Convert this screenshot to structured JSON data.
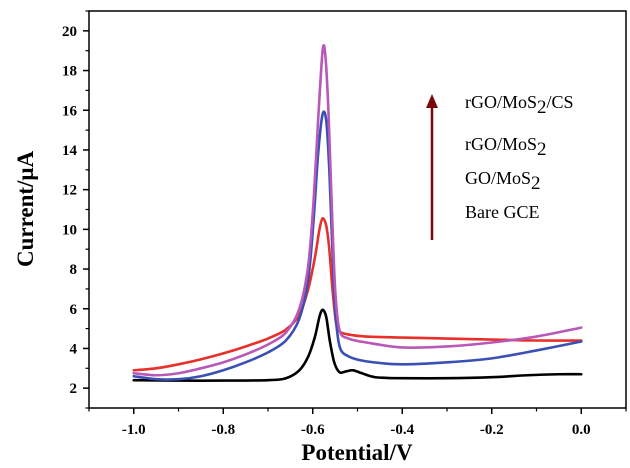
{
  "chart_data": {
    "type": "line",
    "xlabel": "Potential/V",
    "ylabel": "Current/μA",
    "xlim": [
      -1.1,
      0.1
    ],
    "ylim": [
      1,
      21
    ],
    "x_ticks": [
      -1.0,
      -0.8,
      -0.6,
      -0.4,
      -0.2,
      0.0
    ],
    "x_tick_labels": [
      "-1.0",
      "-0.8",
      "-0.6",
      "-0.4",
      "-0.2",
      "0.0"
    ],
    "y_ticks": [
      2,
      4,
      6,
      8,
      10,
      12,
      14,
      16,
      18,
      20
    ],
    "y_tick_labels": [
      "2",
      "4",
      "6",
      "8",
      "10",
      "12",
      "14",
      "16",
      "18",
      "20"
    ],
    "grid": false,
    "legend_placement": "top-right",
    "legend_entries": [
      {
        "label": "rGO/MoS",
        "sub": "2",
        "suffix": "/CS"
      },
      {
        "label": "rGO/MoS",
        "sub": "2",
        "suffix": ""
      },
      {
        "label": "GO/MoS",
        "sub": "2",
        "suffix": ""
      },
      {
        "label": "Bare GCE",
        "sub": "",
        "suffix": ""
      }
    ],
    "arrow": {
      "color": "#7a0a0a",
      "direction": "up"
    },
    "series": [
      {
        "color": "#000000",
        "points": [
          [
            -1.0,
            2.4
          ],
          [
            -0.9,
            2.38
          ],
          [
            -0.8,
            2.38
          ],
          [
            -0.7,
            2.4
          ],
          [
            -0.66,
            2.5
          ],
          [
            -0.63,
            2.9
          ],
          [
            -0.61,
            3.6
          ],
          [
            -0.595,
            4.6
          ],
          [
            -0.585,
            5.6
          ],
          [
            -0.578,
            5.95
          ],
          [
            -0.57,
            5.6
          ],
          [
            -0.562,
            4.4
          ],
          [
            -0.552,
            3.3
          ],
          [
            -0.54,
            2.8
          ],
          [
            -0.525,
            2.85
          ],
          [
            -0.51,
            2.9
          ],
          [
            -0.49,
            2.75
          ],
          [
            -0.46,
            2.55
          ],
          [
            -0.4,
            2.5
          ],
          [
            -0.3,
            2.5
          ],
          [
            -0.2,
            2.55
          ],
          [
            -0.12,
            2.65
          ],
          [
            -0.05,
            2.7
          ],
          [
            0.0,
            2.7
          ]
        ]
      },
      {
        "color": "#e8302a",
        "points": [
          [
            -1.0,
            2.9
          ],
          [
            -0.95,
            3.0
          ],
          [
            -0.9,
            3.2
          ],
          [
            -0.85,
            3.45
          ],
          [
            -0.8,
            3.75
          ],
          [
            -0.75,
            4.1
          ],
          [
            -0.7,
            4.5
          ],
          [
            -0.66,
            4.95
          ],
          [
            -0.63,
            5.7
          ],
          [
            -0.61,
            7.0
          ],
          [
            -0.595,
            8.6
          ],
          [
            -0.585,
            10.0
          ],
          [
            -0.578,
            10.55
          ],
          [
            -0.57,
            10.2
          ],
          [
            -0.563,
            9.0
          ],
          [
            -0.556,
            7.0
          ],
          [
            -0.548,
            5.3
          ],
          [
            -0.54,
            4.85
          ],
          [
            -0.52,
            4.7
          ],
          [
            -0.48,
            4.6
          ],
          [
            -0.4,
            4.55
          ],
          [
            -0.3,
            4.5
          ],
          [
            -0.2,
            4.45
          ],
          [
            -0.1,
            4.4
          ],
          [
            0.0,
            4.4
          ]
        ]
      },
      {
        "color": "#3a50b5",
        "points": [
          [
            -1.0,
            2.6
          ],
          [
            -0.95,
            2.45
          ],
          [
            -0.9,
            2.45
          ],
          [
            -0.85,
            2.6
          ],
          [
            -0.8,
            2.9
          ],
          [
            -0.75,
            3.3
          ],
          [
            -0.7,
            3.8
          ],
          [
            -0.66,
            4.4
          ],
          [
            -0.63,
            5.5
          ],
          [
            -0.61,
            7.5
          ],
          [
            -0.598,
            10.5
          ],
          [
            -0.588,
            13.8
          ],
          [
            -0.578,
            15.8
          ],
          [
            -0.57,
            15.5
          ],
          [
            -0.563,
            13.0
          ],
          [
            -0.557,
            9.5
          ],
          [
            -0.55,
            6.0
          ],
          [
            -0.54,
            4.1
          ],
          [
            -0.52,
            3.6
          ],
          [
            -0.48,
            3.35
          ],
          [
            -0.4,
            3.2
          ],
          [
            -0.3,
            3.3
          ],
          [
            -0.2,
            3.5
          ],
          [
            -0.1,
            3.9
          ],
          [
            0.0,
            4.35
          ]
        ]
      },
      {
        "color": "#b858b8",
        "points": [
          [
            -1.0,
            2.75
          ],
          [
            -0.95,
            2.65
          ],
          [
            -0.9,
            2.75
          ],
          [
            -0.85,
            3.0
          ],
          [
            -0.8,
            3.3
          ],
          [
            -0.75,
            3.7
          ],
          [
            -0.7,
            4.2
          ],
          [
            -0.66,
            4.8
          ],
          [
            -0.63,
            6.0
          ],
          [
            -0.61,
            8.2
          ],
          [
            -0.598,
            11.5
          ],
          [
            -0.588,
            15.5
          ],
          [
            -0.578,
            19.0
          ],
          [
            -0.572,
            18.8
          ],
          [
            -0.565,
            16.0
          ],
          [
            -0.558,
            11.5
          ],
          [
            -0.55,
            7.0
          ],
          [
            -0.54,
            4.9
          ],
          [
            -0.52,
            4.5
          ],
          [
            -0.48,
            4.3
          ],
          [
            -0.4,
            4.05
          ],
          [
            -0.3,
            4.1
          ],
          [
            -0.2,
            4.3
          ],
          [
            -0.1,
            4.6
          ],
          [
            0.0,
            5.05
          ]
        ]
      }
    ]
  }
}
